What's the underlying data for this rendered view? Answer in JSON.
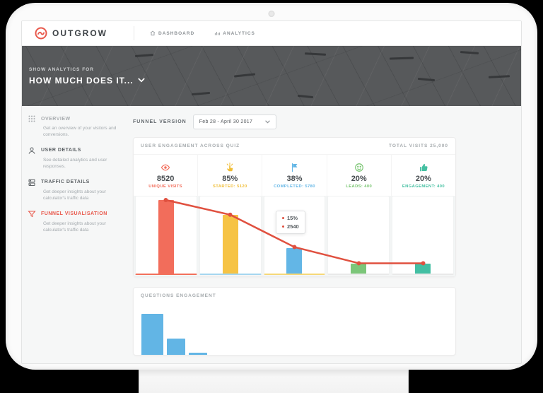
{
  "topbar": {
    "logo_text": "OUTGROW",
    "nav": [
      {
        "label": "DASHBOARD",
        "icon": "home-icon"
      },
      {
        "label": "ANALYTICS",
        "icon": "bar-chart-icon"
      }
    ]
  },
  "hero": {
    "eyebrow": "SHOW ANALYTICS FOR",
    "title": "HOW MUCH DOES IT..."
  },
  "sidebar": {
    "items": [
      {
        "label": "OVERVIEW",
        "desc": "Get an overview of your visitors and conversions.",
        "icon": "grid-dots-icon",
        "color": "#a9adb0",
        "active": false
      },
      {
        "label": "USER DETAILS",
        "desc": "See detailed analytics and user responses.",
        "icon": "user-icon",
        "color": "#5d6266",
        "active": false
      },
      {
        "label": "TRAFFIC DETAILS",
        "desc": "Get deeper insights about your calculator's traffic data",
        "icon": "stack-icon",
        "color": "#5d6266",
        "active": false
      },
      {
        "label": "FUNNEL VISUALISATION",
        "desc": "Get deeper insights about your calculator's traffic data",
        "icon": "funnel-icon",
        "color": "#e8574a",
        "active": true
      }
    ]
  },
  "controls": {
    "funnel_version_label": "FUNNEL VERSION",
    "funnel_version_value": "Feb 28 - April 30 2017"
  },
  "engagement": {
    "title": "USER ENGAGEMENT ACROSS QUIZ",
    "total": "TOTAL VISITS 25,000",
    "stats": [
      {
        "icon": "eye-icon",
        "value": "8520",
        "label": "UNIQUE VISITS",
        "color": "#f26d5b"
      },
      {
        "icon": "tap-icon",
        "value": "85%",
        "label": "STARTED: 5120",
        "color": "#f0bd35"
      },
      {
        "icon": "flag-icon",
        "value": "38%",
        "label": "COMPLETED: 5780",
        "color": "#63b6e6"
      },
      {
        "icon": "smiley-icon",
        "value": "20%",
        "label": "LEADS: 400",
        "color": "#77c46f"
      },
      {
        "icon": "thumbs-up-icon",
        "value": "20%",
        "label": "ENGAGEMENT: 400",
        "color": "#45c0a2"
      }
    ],
    "tooltip": [
      "15%",
      "2540"
    ]
  },
  "questions": {
    "title": "QUESTIONS ENGAGEMENT"
  },
  "chart_data": [
    {
      "type": "bar",
      "name": "user-engagement-funnel",
      "categories": [
        "UNIQUE VISITS",
        "STARTED",
        "COMPLETED",
        "LEADS",
        "ENGAGEMENT"
      ],
      "stat_values": [
        "8520",
        "85%",
        "38%",
        "20%",
        "20%"
      ],
      "bar_heights_pct": [
        100,
        80,
        35,
        13,
        13
      ],
      "line_heights_pct": [
        100,
        80,
        36,
        14,
        14
      ],
      "bar_colors": [
        "#f26d5b",
        "#f6c344",
        "#63b6e6",
        "#7cc679",
        "#43bfa3"
      ],
      "underline_colors": [
        "#f2705b",
        "#a5d6ef",
        "#f6d878",
        "#e9e9e9",
        "#e9e9e9"
      ],
      "line_color": "#e0503f",
      "tooltip_point_index": 2,
      "tooltip_lines": [
        "15%",
        "2540"
      ],
      "legend": "none",
      "grid": false
    },
    {
      "type": "bar",
      "name": "questions-engagement",
      "values_pct": [
        81,
        33,
        5
      ],
      "bar_color": "#62b5e5",
      "title": "QUESTIONS ENGAGEMENT",
      "grid": false
    }
  ]
}
